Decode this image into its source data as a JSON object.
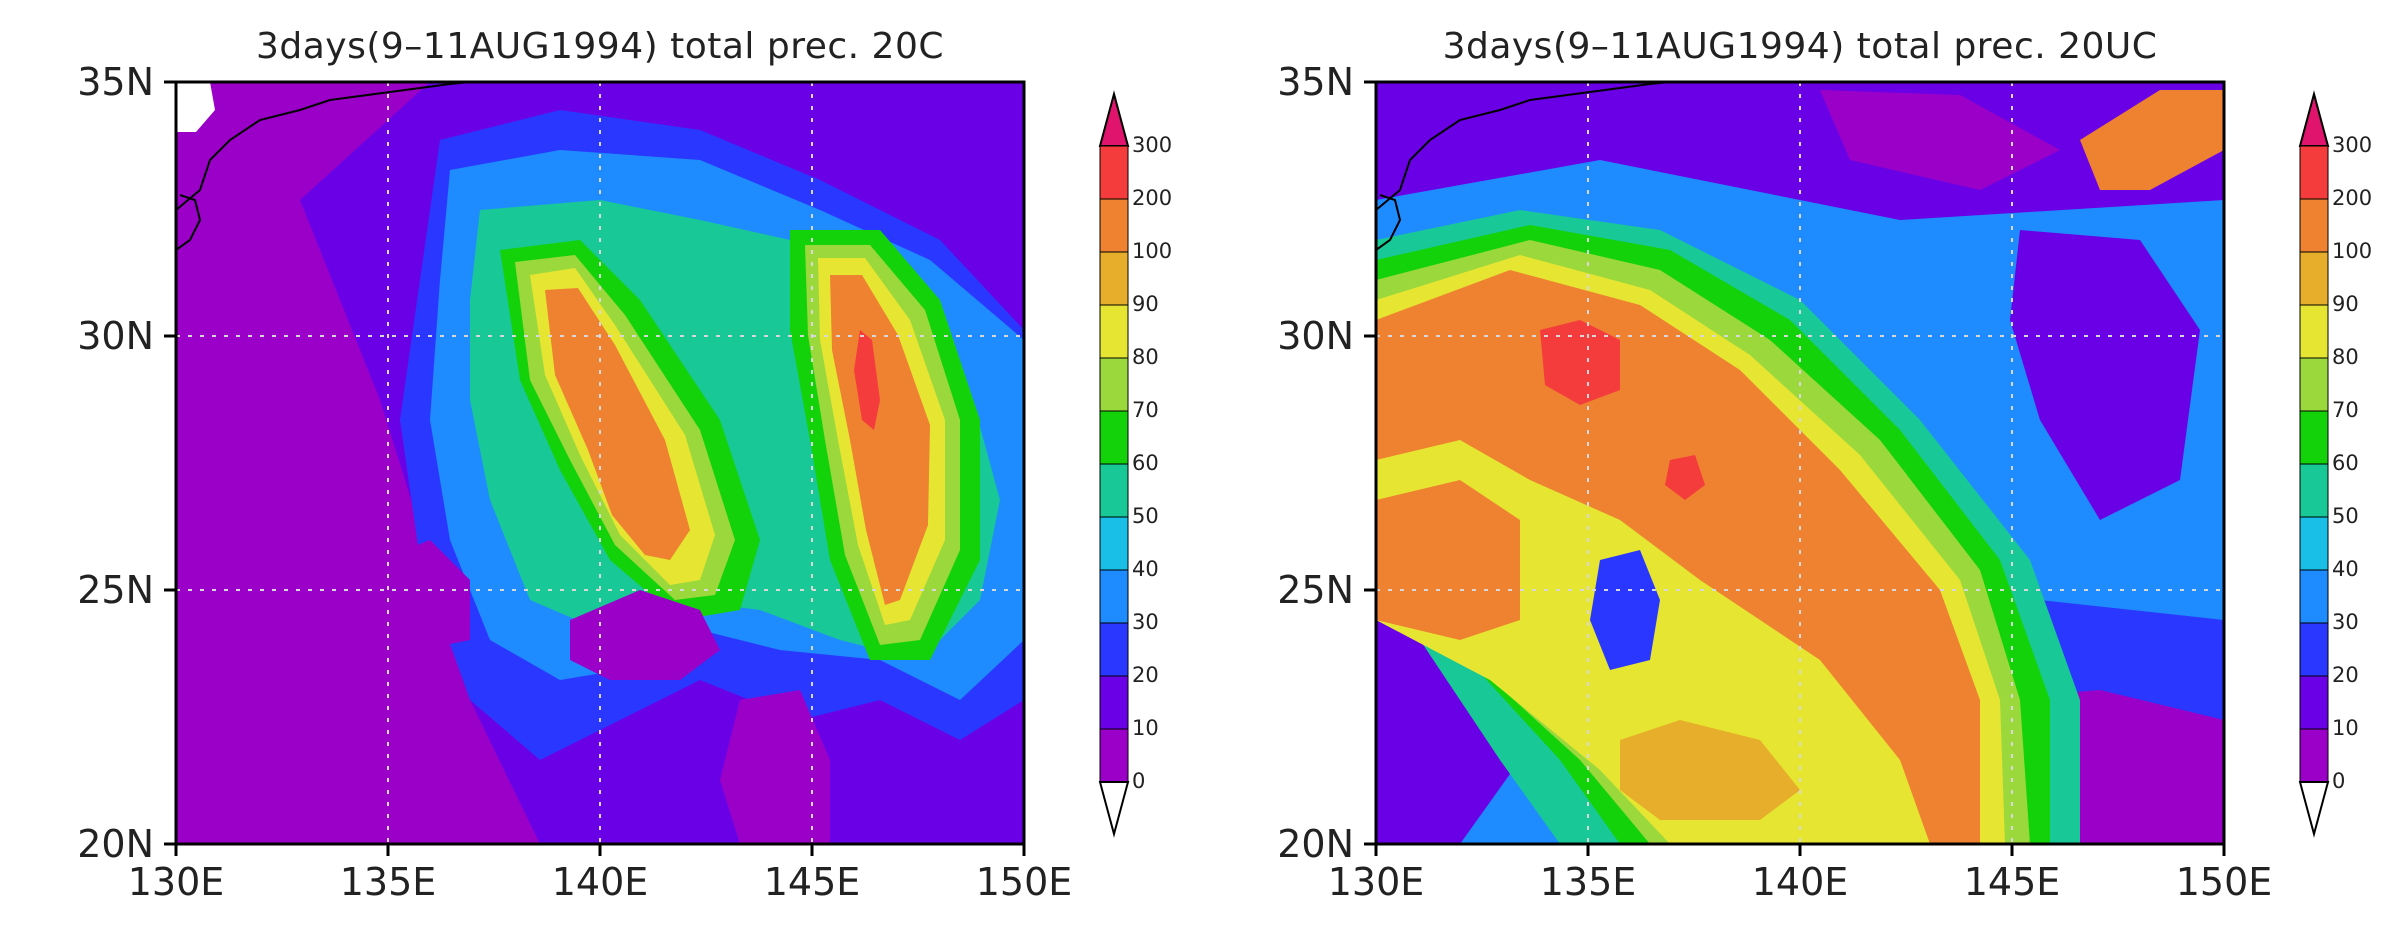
{
  "colorbar": {
    "colors": [
      "#9a00c8",
      "#6a00e6",
      "#2a38ff",
      "#1e8cff",
      "#19bfe6",
      "#18c896",
      "#14d20a",
      "#9ad83c",
      "#e6e632",
      "#e6ae2a",
      "#ee8230",
      "#f43c3c",
      "#e0146c"
    ],
    "labels": [
      "0",
      "10",
      "20",
      "30",
      "40",
      "50",
      "60",
      "70",
      "80",
      "90",
      "100",
      "200",
      "300"
    ]
  },
  "panels": [
    {
      "id": "left",
      "title": "3days(9–11AUG1994) total prec. 20C",
      "lat_labels": [
        "35N",
        "30N",
        "25N",
        "20N"
      ],
      "lon_labels": [
        "130E",
        "135E",
        "140E",
        "145E",
        "150E"
      ],
      "features": [
        "maximum-1-east-of-139E",
        "maximum-2-near-146E-29N"
      ]
    },
    {
      "id": "right",
      "title": "3days(9–11AUG1994) total prec. 20UC",
      "lat_labels": [
        "35N",
        "30N",
        "25N",
        "20N"
      ],
      "lon_labels": [
        "130E",
        "135E",
        "140E",
        "145E",
        "150E"
      ],
      "features": [
        "diagonal-band-from-131E-31N-to-145E-21N"
      ]
    }
  ]
}
